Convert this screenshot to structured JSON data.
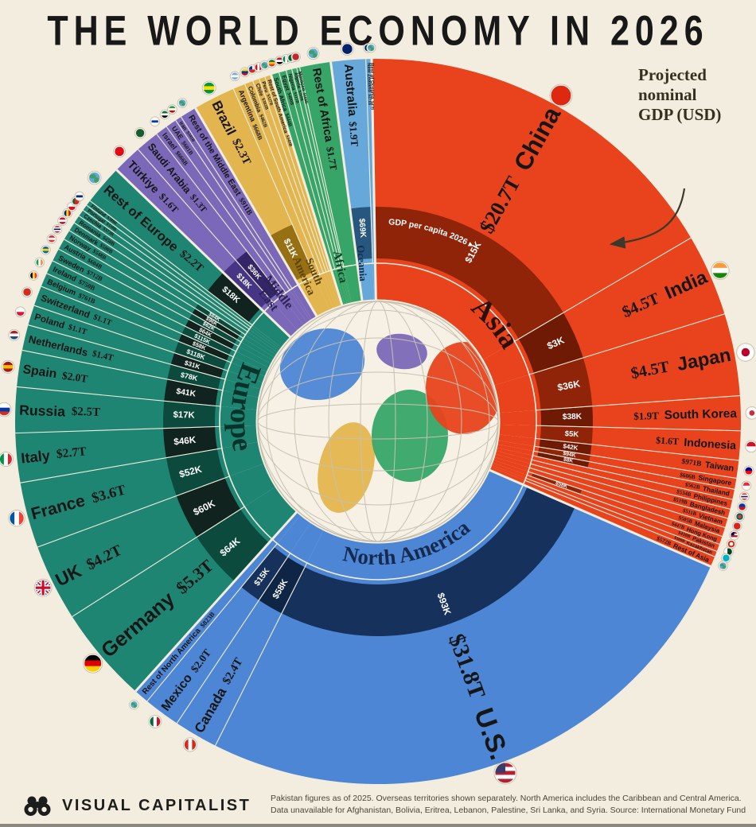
{
  "title": "THE WORLD ECONOMY IN 2026",
  "annotation": {
    "text": "Projected\nnominal\nGDP (USD)"
  },
  "footer": {
    "brand": "VISUAL CAPITALIST",
    "note1": "Pakistan figures as of 2025. Overseas territories shown separately. North America includes the Caribbean and Central America.",
    "note2": "Data unavailable for Afghanistan, Bolivia, Eritrea, Lebanon, Palestine, Sri Lanka, and Syria. Source: International Monetary Fund"
  },
  "chart_data": {
    "type": "pie",
    "subtype": "sunburst-radial-economy-wheel",
    "title": "The World Economy in 2026",
    "units": "USD, projected nominal GDP",
    "per_capita_ring_label": "GDP per capita 2026 ▸",
    "start_angle": -1,
    "bg": "#f2edde",
    "text_color": "#161616",
    "continents": [
      {
        "name": "Asia",
        "color": "#e8431c",
        "chip1": "#8f2409",
        "chip2": "#6f1a05",
        "label_color": "#2b1007",
        "label_arc": {
          "r": 182,
          "a0": 28,
          "a1": 72,
          "fs": 36
        },
        "countries": [
          {
            "name": "China",
            "gdp": "$20.7T",
            "value": 20700,
            "pc": "$15K",
            "flag": {
              "c": [
                "#de2910"
              ]
            }
          },
          {
            "name": "India",
            "gdp": "$4.5T",
            "value": 4500,
            "pc": "$3K",
            "flag": {
              "c": [
                "#ff9933",
                "#ffffff",
                "#138808"
              ]
            }
          },
          {
            "name": "Japan",
            "gdp": "$4.5T",
            "value": 4500,
            "pc": "$36K",
            "flag": {
              "t": "japan",
              "c": [
                "#ffffff",
                "#bc002d"
              ]
            }
          },
          {
            "name": "South Korea",
            "gdp": "$1.9T",
            "value": 1900,
            "pc": "$38K",
            "flag": {
              "t": "japan",
              "c": [
                "#ffffff",
                "#cd2e3a"
              ]
            }
          },
          {
            "name": "Indonesia",
            "gdp": "$1.6T",
            "value": 1600,
            "pc": "$5K",
            "flag": {
              "c": [
                "#ce1126",
                "#ffffff"
              ]
            }
          },
          {
            "name": "Taiwan",
            "gdp": "$971B",
            "value": 971,
            "pc": "$42K",
            "flag": {
              "c": [
                "#000095",
                "#fe0000"
              ]
            }
          },
          {
            "name": "Singapore",
            "gdp": "$606B",
            "value": 606,
            "pc": "$94K",
            "flag": {
              "c": [
                "#ed2939",
                "#ffffff"
              ]
            }
          },
          {
            "name": "Thailand",
            "gdp": "$562B",
            "value": 562,
            "pc": "$8K",
            "flag": {
              "c": [
                "#ed1c24",
                "#ffffff",
                "#241d4f",
                "#ffffff",
                "#ed1c24"
              ]
            }
          },
          {
            "name": "Philippines",
            "gdp": "$534B",
            "value": 534,
            "pc": "",
            "flag": {
              "c": [
                "#0038a8",
                "#ce1126"
              ]
            }
          },
          {
            "name": "Bangladesh",
            "gdp": "$519B",
            "value": 519,
            "pc": "",
            "flag": {
              "t": "japan",
              "c": [
                "#006a4e",
                "#f42a41"
              ]
            }
          },
          {
            "name": "Vietnam",
            "gdp": "$511B",
            "value": 511,
            "pc": "",
            "flag": {
              "c": [
                "#da251d"
              ]
            }
          },
          {
            "name": "Malaysia",
            "gdp": "$505B",
            "value": 505,
            "pc": "",
            "flag": {
              "c": [
                "#cc0001",
                "#ffffff",
                "#cc0001",
                "#ffffff"
              ],
              "k": "#010066"
            }
          },
          {
            "name": "Hong Kong",
            "gdp": "$447B",
            "value": 447,
            "pc": "$58K",
            "flag": {
              "t": "japan",
              "c": [
                "#de2910",
                "#ffffff"
              ]
            }
          },
          {
            "name": "Pakistan",
            "gdp": "$410B",
            "value": 410,
            "pc": "",
            "flag": {
              "t": "v",
              "c": [
                "#ffffff",
                "#01411c",
                "#01411c"
              ]
            }
          },
          {
            "name": "Kazakhstan",
            "gdp": "$308B",
            "value": 308,
            "pc": "",
            "flag": {
              "c": [
                "#00afca"
              ]
            }
          },
          {
            "name": "Rest of Asia",
            "gdp": "$572B",
            "value": 572,
            "pc": "",
            "flag": {
              "t": "globe"
            }
          }
        ]
      },
      {
        "name": "North America",
        "color": "#4d86d4",
        "chip1": "#16315c",
        "chip2": "#0f2545",
        "label_color": "#152a4d",
        "label_arc": {
          "r": 180,
          "a0": 212,
          "a1": 122,
          "fs": 27
        },
        "countries": [
          {
            "name": "U.S.",
            "gdp": "$31.8T",
            "value": 31800,
            "pc": "$93K",
            "flag": {
              "c": [
                "#b22234",
                "#ffffff",
                "#b22234",
                "#ffffff",
                "#b22234"
              ],
              "k": "#3c3b6e"
            }
          },
          {
            "name": "Canada",
            "gdp": "$2.4T",
            "value": 2400,
            "pc": "$58K",
            "flag": {
              "t": "v",
              "c": [
                "#d52b1e",
                "#ffffff",
                "#d52b1e"
              ]
            }
          },
          {
            "name": "Mexico",
            "gdp": "$2.0T",
            "value": 2000,
            "pc": "$15K",
            "flag": {
              "t": "v",
              "c": [
                "#006847",
                "#ffffff",
                "#ce1126"
              ]
            }
          },
          {
            "name": "Rest of North America",
            "gdp": "$823B",
            "value": 823,
            "pc": "",
            "flag": {
              "t": "globe"
            }
          }
        ]
      },
      {
        "name": "Europe",
        "color": "#1f8573",
        "chip1": "#0c4a3d",
        "chip2": "#10231e",
        "label_color": "#07332b",
        "label_arc": {
          "r": 185,
          "a0": 300,
          "a1": 252,
          "fs": 37
        },
        "countries": [
          {
            "name": "Germany",
            "gdp": "$5.3T",
            "value": 5300,
            "pc": "$64K",
            "flag": {
              "c": [
                "#000000",
                "#dd0000",
                "#ffce00"
              ]
            }
          },
          {
            "name": "UK",
            "gdp": "$4.2T",
            "value": 4200,
            "pc": "$60K",
            "flag": {
              "t": "uk",
              "c": [
                "#012169"
              ]
            }
          },
          {
            "name": "France",
            "gdp": "$3.6T",
            "value": 3600,
            "pc": "$52K",
            "flag": {
              "t": "v",
              "c": [
                "#0055a4",
                "#ffffff",
                "#ef4135"
              ]
            }
          },
          {
            "name": "Italy",
            "gdp": "$2.7T",
            "value": 2700,
            "pc": "$46K",
            "flag": {
              "t": "v",
              "c": [
                "#009246",
                "#ffffff",
                "#ce2b37"
              ]
            }
          },
          {
            "name": "Russia",
            "gdp": "$2.5T",
            "value": 2500,
            "pc": "$17K",
            "flag": {
              "c": [
                "#ffffff",
                "#0039a6",
                "#d52b1e"
              ]
            }
          },
          {
            "name": "Spain",
            "gdp": "$2.0T",
            "value": 2000,
            "pc": "$41K",
            "flag": {
              "c": [
                "#aa151b",
                "#f1bf00",
                "#aa151b"
              ]
            }
          },
          {
            "name": "Netherlands",
            "gdp": "$1.4T",
            "value": 1400,
            "pc": "$78K",
            "flag": {
              "c": [
                "#ae1c28",
                "#ffffff",
                "#21468b"
              ]
            }
          },
          {
            "name": "Poland",
            "gdp": "$1.1T",
            "value": 1100,
            "pc": "$31K",
            "flag": {
              "c": [
                "#ffffff",
                "#dc143c"
              ]
            }
          },
          {
            "name": "Switzerland",
            "gdp": "$1.1T",
            "value": 1100,
            "pc": "$118K",
            "flag": {
              "c": [
                "#d52b1e"
              ]
            }
          },
          {
            "name": "Belgium",
            "gdp": "$761B",
            "value": 761,
            "pc": "$58K",
            "flag": {
              "t": "v",
              "c": [
                "#000000",
                "#fdda24",
                "#ef3340"
              ]
            }
          },
          {
            "name": "Ireland",
            "gdp": "$750B",
            "value": 750,
            "pc": "$115K",
            "flag": {
              "t": "v",
              "c": [
                "#169b62",
                "#ffffff",
                "#ff883e"
              ]
            }
          },
          {
            "name": "Sweden",
            "gdp": "$712B",
            "value": 712,
            "pc": "$64K",
            "flag": {
              "c": [
                "#006aa7",
                "#fecc02",
                "#006aa7"
              ]
            }
          },
          {
            "name": "Austria",
            "gdp": "$604B",
            "value": 604,
            "pc": "$62K",
            "flag": {
              "c": [
                "#ed2939",
                "#ffffff",
                "#ed2939"
              ]
            }
          },
          {
            "name": "Norway",
            "gdp": "$548B",
            "value": 548,
            "pc": "$96K",
            "flag": {
              "c": [
                "#ba0c2f",
                "#ffffff",
                "#00205b",
                "#ffffff",
                "#ba0c2f"
              ]
            }
          },
          {
            "name": "Denmark",
            "gdp": "$500B",
            "value": 500,
            "pc": "$84K",
            "flag": {
              "c": [
                "#c8102e",
                "#ffffff",
                "#c8102e"
              ]
            }
          },
          {
            "name": "Romania",
            "gdp": "$450B",
            "value": 450,
            "pc": "",
            "flag": {
              "t": "v",
              "c": [
                "#002b7f",
                "#fcd116",
                "#ce1126"
              ]
            }
          },
          {
            "name": "Czechia",
            "gdp": "$373B",
            "value": 373,
            "pc": "",
            "flag": {
              "c": [
                "#ffffff",
                "#d7141a"
              ]
            }
          },
          {
            "name": "Portugal",
            "gdp": "$330B",
            "value": 330,
            "pc": "",
            "flag": {
              "t": "v",
              "c": [
                "#046a38",
                "#da291c",
                "#da291c"
              ]
            }
          },
          {
            "name": "Finland",
            "gdp": "$308B",
            "value": 308,
            "pc": "",
            "flag": {
              "c": [
                "#ffffff",
                "#002f6c",
                "#ffffff"
              ]
            }
          },
          {
            "name": "Rest of Europe",
            "gdp": "$2.2T",
            "value": 2200,
            "pc": "$18K",
            "flag": {
              "t": "globe"
            }
          }
        ]
      },
      {
        "name": "Middle East",
        "color": "#7b68b8",
        "chip1": "#453584",
        "chip2": "#332566",
        "label_color": "#2d2356",
        "label_radial": {
          "r": 205,
          "fs": 16,
          "lines": [
            "Middle",
            "East"
          ]
        },
        "countries": [
          {
            "name": "Türkiye",
            "gdp": "$1.6T",
            "value": 1600,
            "pc": "$18K",
            "flag": {
              "c": [
                "#e30a17"
              ]
            }
          },
          {
            "name": "Saudi Arabia",
            "gdp": "$1.3T",
            "value": 1300,
            "pc": "$36K",
            "flag": {
              "c": [
                "#165d31"
              ]
            }
          },
          {
            "name": "Israel",
            "gdp": "$666B",
            "value": 666,
            "pc": "",
            "flag": {
              "c": [
                "#ffffff",
                "#0038b8",
                "#ffffff"
              ]
            }
          },
          {
            "name": "UAE",
            "gdp": "$601B",
            "value": 601,
            "pc": "",
            "flag": {
              "c": [
                "#00732f",
                "#ffffff",
                "#000000"
              ]
            }
          },
          {
            "name": "Iran",
            "gdp": "$341B",
            "value": 341,
            "pc": "",
            "flag": {
              "c": [
                "#239f40",
                "#ffffff",
                "#da0000"
              ]
            }
          },
          {
            "name": "Rest of the Middle East",
            "gdp": "$911B",
            "value": 911,
            "pc": "",
            "flag": {
              "t": "globe"
            }
          }
        ]
      },
      {
        "name": "South America",
        "color": "#e3b54e",
        "chip1": "#987014",
        "chip2": "#7a590e",
        "label_color": "#5c430e",
        "label_radial": {
          "r": 205,
          "fs": 14,
          "lines": [
            "South",
            "America"
          ]
        },
        "countries": [
          {
            "name": "Brazil",
            "gdp": "$2.3T",
            "value": 2300,
            "pc": "$11K",
            "flag": {
              "c": [
                "#009739",
                "#fedd00",
                "#009739"
              ]
            }
          },
          {
            "name": "Argentina",
            "gdp": "$668B",
            "value": 668,
            "pc": "",
            "flag": {
              "c": [
                "#74acdf",
                "#ffffff",
                "#74acdf"
              ]
            }
          },
          {
            "name": "Colombia",
            "gdp": "$462B",
            "value": 462,
            "pc": "",
            "flag": {
              "c": [
                "#fcd116",
                "#003893",
                "#ce1126"
              ]
            }
          },
          {
            "name": "Chile",
            "gdp": "$363B",
            "value": 363,
            "pc": "",
            "flag": {
              "c": [
                "#ffffff",
                "#d52b1e"
              ],
              "k": "#0033a0"
            }
          },
          {
            "name": "Peru",
            "gdp": "$327B",
            "value": 327,
            "pc": "",
            "flag": {
              "t": "v",
              "c": [
                "#d91023",
                "#ffffff",
                "#d91023"
              ]
            }
          },
          {
            "name": "Rest of South America",
            "gdp": "$349B",
            "value": 349,
            "pc": "",
            "flag": {
              "t": "globe"
            }
          }
        ]
      },
      {
        "name": "Africa",
        "color": "#37a567",
        "chip1": "#125c36",
        "chip2": "#0c4227",
        "label_color": "#0b4528",
        "label_radial": {
          "r": 200,
          "fs": 15,
          "lines": [
            "Africa"
          ]
        },
        "countries": [
          {
            "name": "South Africa",
            "gdp": "$444B",
            "value": 444,
            "pc": "",
            "flag": {
              "c": [
                "#007749",
                "#ffb612",
                "#de3831"
              ]
            }
          },
          {
            "name": "Egypt",
            "gdp": "$400B",
            "value": 400,
            "pc": "",
            "flag": {
              "c": [
                "#ce1126",
                "#ffffff",
                "#000000"
              ]
            }
          },
          {
            "name": "Nigeria",
            "gdp": "$315B",
            "value": 315,
            "pc": "",
            "flag": {
              "t": "v",
              "c": [
                "#008751",
                "#ffffff",
                "#008751"
              ]
            }
          },
          {
            "name": "Algeria",
            "gdp": "$269B",
            "value": 269,
            "pc": "",
            "flag": {
              "t": "v",
              "c": [
                "#006233",
                "#ffffff"
              ]
            }
          },
          {
            "name": "Morocco",
            "gdp": "$168B",
            "value": 168,
            "pc": "",
            "flag": {
              "c": [
                "#c1272d"
              ]
            }
          },
          {
            "name": "Rest of Africa",
            "gdp": "$1.7T",
            "value": 1700,
            "pc": "",
            "flag": {
              "t": "globe"
            }
          }
        ]
      },
      {
        "name": "Oceania",
        "color": "#66a8da",
        "chip1": "#27567f",
        "chip2": "#1b3f61",
        "label_color": "#13304f",
        "label_radial": {
          "r": 200,
          "fs": 13,
          "lines": [
            "Oceania"
          ]
        },
        "countries": [
          {
            "name": "Australia",
            "gdp": "$1.9T",
            "value": 1900,
            "pc": "$69K",
            "flag": {
              "c": [
                "#012169"
              ]
            }
          },
          {
            "name": "New Zealand",
            "gdp": "$271B",
            "value": 271,
            "pc": "",
            "flag": {
              "c": [
                "#012169"
              ]
            }
          },
          {
            "name": "Rest of Oceania",
            "gdp": "$47B",
            "value": 47,
            "pc": "",
            "flag": {
              "t": "globe"
            }
          }
        ]
      }
    ]
  }
}
